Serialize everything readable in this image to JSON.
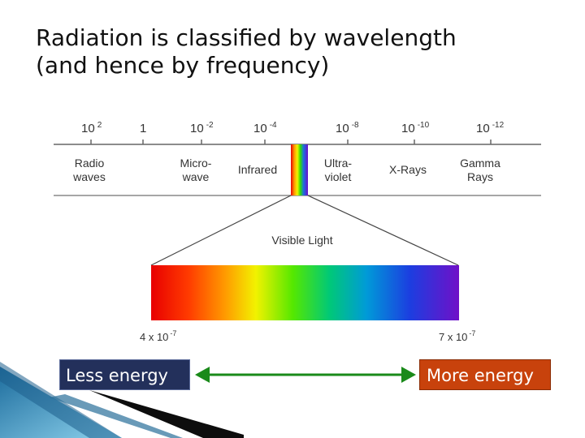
{
  "title": {
    "line1": "Radiation is classified by wavelength",
    "line2": "(and hence by frequency)"
  },
  "wavelength_ticks": [
    {
      "base": "10",
      "exp": "2"
    },
    {
      "base": "1",
      "exp": ""
    },
    {
      "base": "10",
      "exp": "-2"
    },
    {
      "base": "10",
      "exp": "-4"
    },
    {
      "base": "10",
      "exp": "-8"
    },
    {
      "base": "10",
      "exp": "-10"
    },
    {
      "base": "10",
      "exp": "-12"
    }
  ],
  "regions": [
    {
      "line1": "Radio",
      "line2": "waves"
    },
    {
      "line1": "Micro-",
      "line2": "wave"
    },
    {
      "line1": "Infrared",
      "line2": ""
    },
    {
      "line1": "Ultra-",
      "line2": "violet"
    },
    {
      "line1": "X-Rays",
      "line2": ""
    },
    {
      "line1": "Gamma",
      "line2": "Rays"
    }
  ],
  "visible_light": {
    "label": "Visible Light",
    "left_value": {
      "text": "4 x 10",
      "exp": "-7"
    },
    "right_value": {
      "text": "7 x 10",
      "exp": "-7"
    }
  },
  "energy": {
    "less": "Less energy",
    "more": "More energy"
  },
  "colors": {
    "less_box": "#23305b",
    "more_box": "#c8420c",
    "arrow": "#1a8a1a"
  }
}
